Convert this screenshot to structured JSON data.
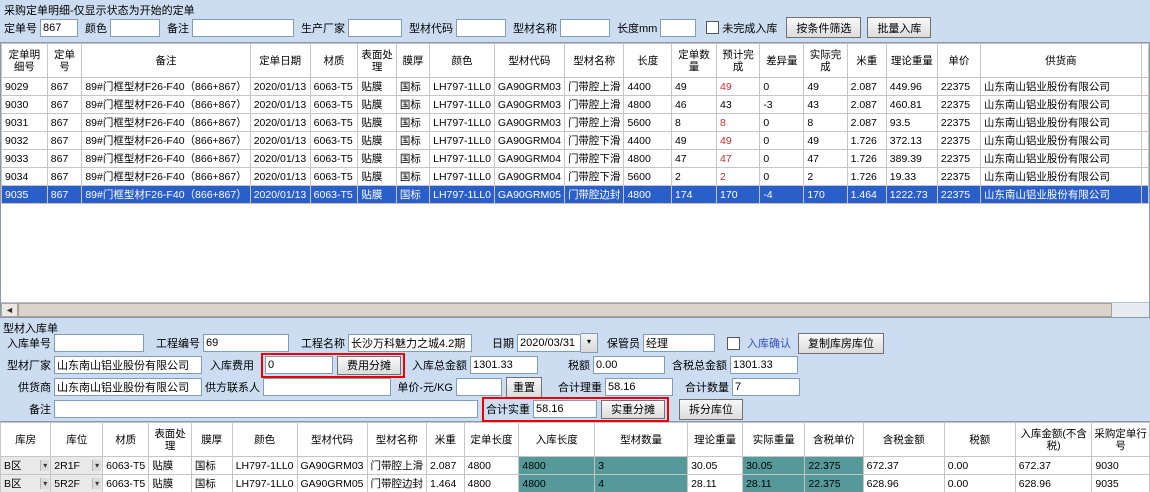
{
  "top_section": {
    "title": "采购定单明细-仅显示状态为开始的定单",
    "filter": {
      "order_no_label": "定单号",
      "order_no_value": "867",
      "color_label": "颜色",
      "color_value": "",
      "remark_label": "备注",
      "remark_value": "",
      "manufacturer_label": "生产厂家",
      "manufacturer_value": "",
      "profile_code_label": "型材代码",
      "profile_code_value": "",
      "profile_name_label": "型材名称",
      "profile_name_value": "",
      "length_label": "长度mm",
      "length_value": "",
      "unfinished_checkbox_label": "未完成入库",
      "filter_button": "按条件筛选",
      "batch_in_button": "批量入库"
    },
    "table": {
      "headers": [
        "定单明细号",
        "定单号",
        "备注",
        "定单日期",
        "材质",
        "表面处理",
        "膜厚",
        "颜色",
        "型材代码",
        "型材名称",
        "长度",
        "定单数量",
        "预计完成",
        "差异量",
        "实际完成",
        "米重",
        "理论重量",
        "单价",
        "供货商"
      ],
      "rows": [
        {
          "selected": false,
          "forecast_red": true,
          "cells": [
            "9029",
            "867",
            "89#门框型材F26-F40（866+867）",
            "2020/01/13",
            "6063-T5",
            "贴膜",
            "国标",
            "LH797-1LL0",
            "GA90GRM03",
            "门带腔上滑",
            "4400",
            "49",
            "49",
            "0",
            "49",
            "2.087",
            "449.96",
            "22375",
            "山东南山铝业股份有限公司"
          ]
        },
        {
          "selected": false,
          "forecast_red": false,
          "cells": [
            "9030",
            "867",
            "89#门框型材F26-F40（866+867）",
            "2020/01/13",
            "6063-T5",
            "贴膜",
            "国标",
            "LH797-1LL0",
            "GA90GRM03",
            "门带腔上滑",
            "4800",
            "46",
            "43",
            "-3",
            "43",
            "2.087",
            "460.81",
            "22375",
            "山东南山铝业股份有限公司"
          ]
        },
        {
          "selected": false,
          "forecast_red": true,
          "cells": [
            "9031",
            "867",
            "89#门框型材F26-F40（866+867）",
            "2020/01/13",
            "6063-T5",
            "贴膜",
            "国标",
            "LH797-1LL0",
            "GA90GRM03",
            "门带腔上滑",
            "5600",
            "8",
            "8",
            "0",
            "8",
            "2.087",
            "93.5",
            "22375",
            "山东南山铝业股份有限公司"
          ]
        },
        {
          "selected": false,
          "forecast_red": true,
          "cells": [
            "9032",
            "867",
            "89#门框型材F26-F40（866+867）",
            "2020/01/13",
            "6063-T5",
            "贴膜",
            "国标",
            "LH797-1LL0",
            "GA90GRM04",
            "门带腔下滑",
            "4400",
            "49",
            "49",
            "0",
            "49",
            "1.726",
            "372.13",
            "22375",
            "山东南山铝业股份有限公司"
          ]
        },
        {
          "selected": false,
          "forecast_red": true,
          "cells": [
            "9033",
            "867",
            "89#门框型材F26-F40（866+867）",
            "2020/01/13",
            "6063-T5",
            "贴膜",
            "国标",
            "LH797-1LL0",
            "GA90GRM04",
            "门带腔下滑",
            "4800",
            "47",
            "47",
            "0",
            "47",
            "1.726",
            "389.39",
            "22375",
            "山东南山铝业股份有限公司"
          ]
        },
        {
          "selected": false,
          "forecast_red": true,
          "cells": [
            "9034",
            "867",
            "89#门框型材F26-F40（866+867）",
            "2020/01/13",
            "6063-T5",
            "贴膜",
            "国标",
            "LH797-1LL0",
            "GA90GRM04",
            "门带腔下滑",
            "5600",
            "2",
            "2",
            "0",
            "2",
            "1.726",
            "19.33",
            "22375",
            "山东南山铝业股份有限公司"
          ]
        },
        {
          "selected": true,
          "forecast_red": false,
          "cells": [
            "9035",
            "867",
            "89#门框型材F26-F40（866+867）",
            "2020/01/13",
            "6063-T5",
            "贴膜",
            "国标",
            "LH797-1LL0",
            "GA90GRM05",
            "门带腔边封",
            "4800",
            "174",
            "170",
            "-4",
            "170",
            "1.464",
            "1222.73",
            "22375",
            "山东南山铝业股份有限公司"
          ]
        }
      ]
    }
  },
  "bottom_section": {
    "title": "型材入库单",
    "form": {
      "receipt_no_label": "入库单号",
      "receipt_no_value": "",
      "project_no_label": "工程编号",
      "project_no_value": "69",
      "project_name_label": "工程名称",
      "project_name_value": "长沙万科魅力之城4.2期",
      "date_label": "日期",
      "date_value": "2020/03/31",
      "keeper_label": "保管员",
      "keeper_value": "经理",
      "confirm_checkbox_label": "入库确认",
      "copy_location_button": "复制库房库位",
      "factory_label": "型材厂家",
      "factory_value": "山东南山铝业股份有限公司",
      "fee_label": "入库费用",
      "fee_value": "0",
      "fee_share_button": "费用分摊",
      "total_amount_label": "入库总金额",
      "total_amount_value": "1301.33",
      "tax_label": "税额",
      "tax_value": "0.00",
      "tax_total_label": "含税总金额",
      "tax_total_value": "1301.33",
      "supplier_label": "供货商",
      "supplier_value": "山东南山铝业股份有限公司",
      "contact_label": "供方联系人",
      "contact_value": "",
      "unit_price_label": "单价-元/KG",
      "unit_price_value": "",
      "reset_button": "重置",
      "theory_weight_label": "合计理重",
      "theory_weight_value": "58.16",
      "total_qty_label": "合计数量",
      "total_qty_value": "7",
      "remark_label": "备注",
      "remark_value": "",
      "actual_weight_label": "合计实重",
      "actual_weight_value": "58.16",
      "weight_share_button": "实重分摊",
      "split_location_button": "拆分库位"
    },
    "table": {
      "headers": [
        "库房",
        "库位",
        "材质",
        "表面处理",
        "膜厚",
        "颜色",
        "型材代码",
        "型材名称",
        "米重",
        "定单长度",
        "入库长度",
        "型材数量",
        "理论重量",
        "实际重量",
        "含税单价",
        "含税金额",
        "税额",
        "入库金额(不含税)",
        "采购定单行号"
      ],
      "rows": [
        {
          "cells": [
            "B区",
            "2R1F",
            "6063-T5",
            "贴膜",
            "国标",
            "LH797-1LL0",
            "GA90GRM03",
            "门带腔上滑",
            "2.087",
            "4800",
            "4800",
            "3",
            "30.05",
            "30.05",
            "22.375",
            "672.37",
            "0.00",
            "672.37",
            "9030"
          ]
        },
        {
          "cells": [
            "B区",
            "5R2F",
            "6063-T5",
            "贴膜",
            "国标",
            "LH797-1LL0",
            "GA90GRM05",
            "门带腔边封",
            "1.464",
            "4800",
            "4800",
            "4",
            "28.11",
            "28.11",
            "22.375",
            "628.96",
            "0.00",
            "628.96",
            "9035"
          ]
        }
      ]
    }
  }
}
